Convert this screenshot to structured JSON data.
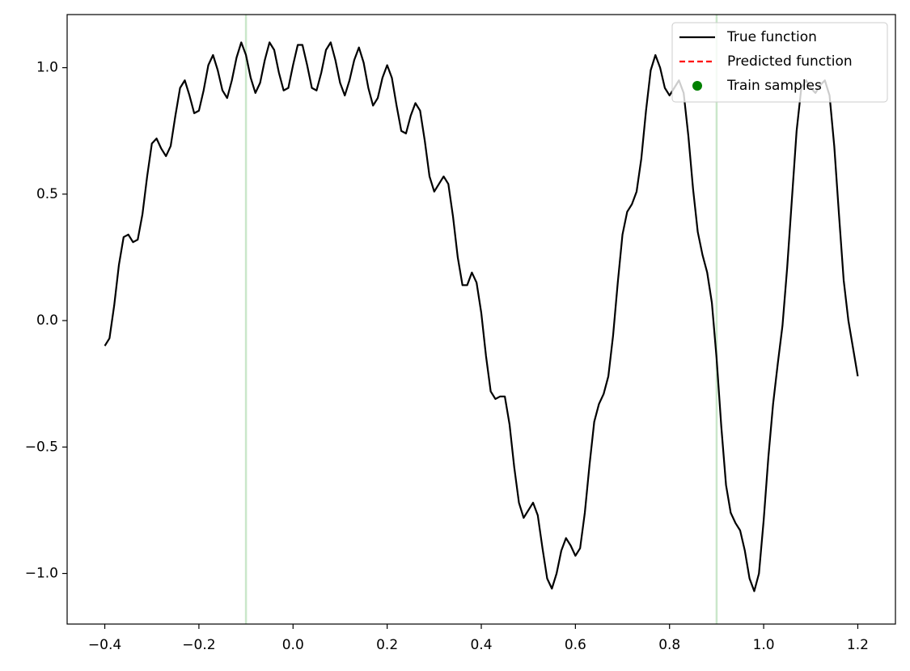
{
  "chart_data": {
    "type": "line",
    "x": [
      -0.4,
      -0.39,
      -0.38,
      -0.37,
      -0.36,
      -0.35,
      -0.34,
      -0.33,
      -0.32,
      -0.31,
      -0.3,
      -0.29,
      -0.28,
      -0.27,
      -0.26,
      -0.25,
      -0.24,
      -0.23,
      -0.22,
      -0.21,
      -0.2,
      -0.19,
      -0.18,
      -0.17,
      -0.16,
      -0.15,
      -0.14,
      -0.13,
      -0.12,
      -0.11,
      -0.1,
      -0.09,
      -0.08,
      -0.07,
      -0.06,
      -0.05,
      -0.04,
      -0.03,
      -0.02,
      -0.01,
      0,
      0.01,
      0.02,
      0.03,
      0.04,
      0.05,
      0.06,
      0.07,
      0.08,
      0.09,
      0.1,
      0.11,
      0.12,
      0.13,
      0.14,
      0.15,
      0.16,
      0.17,
      0.18,
      0.19,
      0.2,
      0.21,
      0.22,
      0.23,
      0.24,
      0.25,
      0.26,
      0.27,
      0.28,
      0.29,
      0.3,
      0.31,
      0.32,
      0.33,
      0.34,
      0.35,
      0.36,
      0.37,
      0.38,
      0.39,
      0.4,
      0.41,
      0.42,
      0.43,
      0.44,
      0.45,
      0.46,
      0.47,
      0.48,
      0.49,
      0.5,
      0.51,
      0.52,
      0.53,
      0.54,
      0.55,
      0.56,
      0.57,
      0.58,
      0.59,
      0.6,
      0.61,
      0.62,
      0.63,
      0.64,
      0.65,
      0.66,
      0.67,
      0.68,
      0.69,
      0.7,
      0.71,
      0.72,
      0.73,
      0.74,
      0.75,
      0.76,
      0.77,
      0.78,
      0.79,
      0.8,
      0.81,
      0.82,
      0.83,
      0.84,
      0.85,
      0.86,
      0.87,
      0.88,
      0.89,
      0.9,
      0.91,
      0.92,
      0.93,
      0.94,
      0.95,
      0.96,
      0.97,
      0.98,
      0.99,
      1.0,
      1.01,
      1.02,
      1.03,
      1.04,
      1.05,
      1.06,
      1.07,
      1.08,
      1.09,
      1.1,
      1.11,
      1.12,
      1.13,
      1.14,
      1.15,
      1.16,
      1.17,
      1.18,
      1.19,
      1.2
    ],
    "series": [
      {
        "name": "True function",
        "color": "#000000",
        "style": "solid",
        "values": [
          -0.1,
          -0.07,
          0.06,
          0.22,
          0.33,
          0.34,
          0.31,
          0.32,
          0.42,
          0.57,
          0.7,
          0.72,
          0.68,
          0.65,
          0.69,
          0.81,
          0.92,
          0.95,
          0.89,
          0.82,
          0.83,
          0.91,
          1.01,
          1.05,
          0.99,
          0.91,
          0.88,
          0.95,
          1.04,
          1.1,
          1.05,
          0.96,
          0.9,
          0.94,
          1.03,
          1.1,
          1.07,
          0.98,
          0.91,
          0.92,
          1.01,
          1.09,
          1.09,
          1.01,
          0.92,
          0.91,
          0.98,
          1.07,
          1.1,
          1.03,
          0.94,
          0.89,
          0.95,
          1.03,
          1.08,
          1.02,
          0.92,
          0.85,
          0.88,
          0.96,
          1.01,
          0.96,
          0.85,
          0.75,
          0.74,
          0.81,
          0.86,
          0.83,
          0.71,
          0.57,
          0.51,
          0.54,
          0.57,
          0.54,
          0.41,
          0.25,
          0.14,
          0.14,
          0.19,
          0.15,
          0.03,
          -0.14,
          -0.28,
          -0.31,
          -0.3,
          -0.3,
          -0.41,
          -0.58,
          -0.72,
          -0.78,
          -0.75,
          -0.72,
          -0.77,
          -0.9,
          -1.02,
          -1.06,
          -1.0,
          -0.91,
          -0.86,
          -0.89,
          -0.93,
          -0.9,
          -0.76,
          -0.57,
          -0.4,
          -0.33,
          -0.29,
          -0.22,
          -0.06,
          0.15,
          0.34,
          0.43,
          0.46,
          0.51,
          0.64,
          0.83,
          0.99,
          1.05,
          1.0,
          0.92,
          0.89,
          0.92,
          0.95,
          0.9,
          0.73,
          0.52,
          0.35,
          0.26,
          0.19,
          0.07,
          -0.15,
          -0.42,
          -0.65,
          -0.76,
          -0.8,
          -0.83,
          -0.91,
          -1.02,
          -1.07,
          -1.0,
          -0.79,
          -0.54,
          -0.33,
          -0.17,
          -0.02,
          0.21,
          0.48,
          0.75,
          0.92,
          0.95,
          0.92,
          0.9,
          0.93,
          0.95,
          0.89,
          0.69,
          0.42,
          0.16,
          0.0,
          -0.11,
          -0.22
        ]
      },
      {
        "name": "Predicted function",
        "color": "#ff0000",
        "style": "dashed"
      },
      {
        "name": "Train samples",
        "color": "#008000",
        "style": "marker"
      }
    ],
    "vlines": [
      -0.1,
      0.9
    ],
    "vline_color": "#2ca02c",
    "xlim": [
      -0.48,
      1.28
    ],
    "ylim": [
      -1.2,
      1.21
    ],
    "xticks": [
      {
        "value": -0.4,
        "label": "−0.4"
      },
      {
        "value": -0.2,
        "label": "−0.2"
      },
      {
        "value": 0,
        "label": "0.0"
      },
      0.2,
      0.4,
      0.6,
      0.8,
      {
        "value": 1,
        "label": "1.0"
      },
      1.2
    ],
    "yticks": [
      {
        "value": -1,
        "label": "−1.0"
      },
      {
        "value": -0.5,
        "label": "−0.5"
      },
      {
        "value": 0,
        "label": "0.0"
      },
      0.5,
      {
        "value": 1,
        "label": "1.0"
      }
    ],
    "grid": false,
    "legend": "upper right"
  }
}
